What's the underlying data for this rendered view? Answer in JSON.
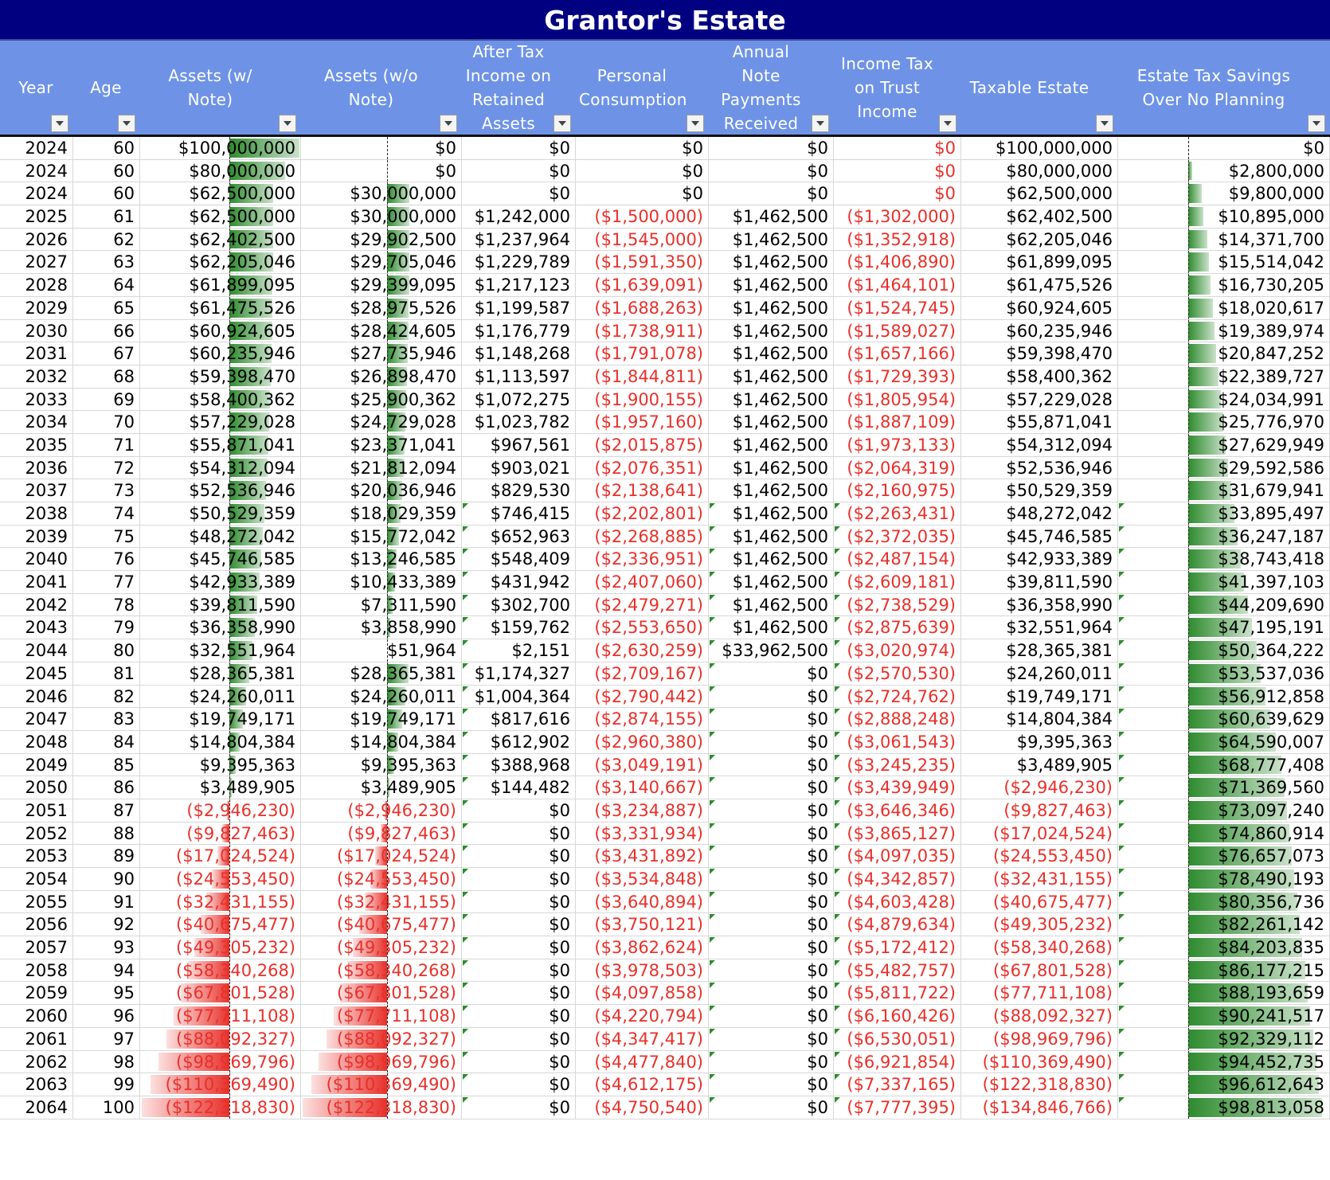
{
  "title": "Grantor's Estate",
  "colors": {
    "title_bg": "#000080",
    "header_bg": "#6e93e6",
    "negative_text": "#e8302a",
    "bar_positive": "#2e8b2e",
    "bar_negative": "#e8302a"
  },
  "columns": [
    {
      "key": "year",
      "label": "Year"
    },
    {
      "key": "age",
      "label": "Age"
    },
    {
      "key": "assets_w_note",
      "label": "Assets (w/ Note)"
    },
    {
      "key": "assets_wo_note",
      "label": "Assets (w/o Note)"
    },
    {
      "key": "after_tax_income",
      "label": "After Tax Income on Retained Assets"
    },
    {
      "key": "personal_consumption",
      "label": "Personal Consumption"
    },
    {
      "key": "annual_note_payments",
      "label": "Annual Note Payments Received"
    },
    {
      "key": "income_tax_trust",
      "label": "Income Tax on Trust Income"
    },
    {
      "key": "taxable_estate",
      "label": "Taxable Estate"
    },
    {
      "key": "estate_tax_savings",
      "label": "Estate Tax Savings Over No Planning"
    }
  ],
  "rows": [
    [
      "2024",
      "60",
      "$100,000,000",
      "$0",
      "$0",
      "$0",
      "$0",
      "$0",
      "$100,000,000",
      "$0"
    ],
    [
      "2024",
      "60",
      "$80,000,000",
      "$0",
      "$0",
      "$0",
      "$0",
      "$0",
      "$80,000,000",
      "$2,800,000"
    ],
    [
      "2024",
      "60",
      "$62,500,000",
      "$30,000,000",
      "$0",
      "$0",
      "$0",
      "$0",
      "$62,500,000",
      "$9,800,000"
    ],
    [
      "2025",
      "61",
      "$62,500,000",
      "$30,000,000",
      "$1,242,000",
      "($1,500,000)",
      "$1,462,500",
      "($1,302,000)",
      "$62,402,500",
      "$10,895,000"
    ],
    [
      "2026",
      "62",
      "$62,402,500",
      "$29,902,500",
      "$1,237,964",
      "($1,545,000)",
      "$1,462,500",
      "($1,352,918)",
      "$62,205,046",
      "$14,371,700"
    ],
    [
      "2027",
      "63",
      "$62,205,046",
      "$29,705,046",
      "$1,229,789",
      "($1,591,350)",
      "$1,462,500",
      "($1,406,890)",
      "$61,899,095",
      "$15,514,042"
    ],
    [
      "2028",
      "64",
      "$61,899,095",
      "$29,399,095",
      "$1,217,123",
      "($1,639,091)",
      "$1,462,500",
      "($1,464,101)",
      "$61,475,526",
      "$16,730,205"
    ],
    [
      "2029",
      "65",
      "$61,475,526",
      "$28,975,526",
      "$1,199,587",
      "($1,688,263)",
      "$1,462,500",
      "($1,524,745)",
      "$60,924,605",
      "$18,020,617"
    ],
    [
      "2030",
      "66",
      "$60,924,605",
      "$28,424,605",
      "$1,176,779",
      "($1,738,911)",
      "$1,462,500",
      "($1,589,027)",
      "$60,235,946",
      "$19,389,974"
    ],
    [
      "2031",
      "67",
      "$60,235,946",
      "$27,735,946",
      "$1,148,268",
      "($1,791,078)",
      "$1,462,500",
      "($1,657,166)",
      "$59,398,470",
      "$20,847,252"
    ],
    [
      "2032",
      "68",
      "$59,398,470",
      "$26,898,470",
      "$1,113,597",
      "($1,844,811)",
      "$1,462,500",
      "($1,729,393)",
      "$58,400,362",
      "$22,389,727"
    ],
    [
      "2033",
      "69",
      "$58,400,362",
      "$25,900,362",
      "$1,072,275",
      "($1,900,155)",
      "$1,462,500",
      "($1,805,954)",
      "$57,229,028",
      "$24,034,991"
    ],
    [
      "2034",
      "70",
      "$57,229,028",
      "$24,729,028",
      "$1,023,782",
      "($1,957,160)",
      "$1,462,500",
      "($1,887,109)",
      "$55,871,041",
      "$25,776,970"
    ],
    [
      "2035",
      "71",
      "$55,871,041",
      "$23,371,041",
      "$967,561",
      "($2,015,875)",
      "$1,462,500",
      "($1,973,133)",
      "$54,312,094",
      "$27,629,949"
    ],
    [
      "2036",
      "72",
      "$54,312,094",
      "$21,812,094",
      "$903,021",
      "($2,076,351)",
      "$1,462,500",
      "($2,064,319)",
      "$52,536,946",
      "$29,592,586"
    ],
    [
      "2037",
      "73",
      "$52,536,946",
      "$20,036,946",
      "$829,530",
      "($2,138,641)",
      "$1,462,500",
      "($2,160,975)",
      "$50,529,359",
      "$31,679,941"
    ],
    [
      "2038",
      "74",
      "$50,529,359",
      "$18,029,359",
      "$746,415",
      "($2,202,801)",
      "$1,462,500",
      "($2,263,431)",
      "$48,272,042",
      "$33,895,497"
    ],
    [
      "2039",
      "75",
      "$48,272,042",
      "$15,772,042",
      "$652,963",
      "($2,268,885)",
      "$1,462,500",
      "($2,372,035)",
      "$45,746,585",
      "$36,247,187"
    ],
    [
      "2040",
      "76",
      "$45,746,585",
      "$13,246,585",
      "$548,409",
      "($2,336,951)",
      "$1,462,500",
      "($2,487,154)",
      "$42,933,389",
      "$38,743,418"
    ],
    [
      "2041",
      "77",
      "$42,933,389",
      "$10,433,389",
      "$431,942",
      "($2,407,060)",
      "$1,462,500",
      "($2,609,181)",
      "$39,811,590",
      "$41,397,103"
    ],
    [
      "2042",
      "78",
      "$39,811,590",
      "$7,311,590",
      "$302,700",
      "($2,479,271)",
      "$1,462,500",
      "($2,738,529)",
      "$36,358,990",
      "$44,209,690"
    ],
    [
      "2043",
      "79",
      "$36,358,990",
      "$3,858,990",
      "$159,762",
      "($2,553,650)",
      "$1,462,500",
      "($2,875,639)",
      "$32,551,964",
      "$47,195,191"
    ],
    [
      "2044",
      "80",
      "$32,551,964",
      "$51,964",
      "$2,151",
      "($2,630,259)",
      "$33,962,500",
      "($3,020,974)",
      "$28,365,381",
      "$50,364,222"
    ],
    [
      "2045",
      "81",
      "$28,365,381",
      "$28,365,381",
      "$1,174,327",
      "($2,709,167)",
      "$0",
      "($2,570,530)",
      "$24,260,011",
      "$53,537,036"
    ],
    [
      "2046",
      "82",
      "$24,260,011",
      "$24,260,011",
      "$1,004,364",
      "($2,790,442)",
      "$0",
      "($2,724,762)",
      "$19,749,171",
      "$56,912,858"
    ],
    [
      "2047",
      "83",
      "$19,749,171",
      "$19,749,171",
      "$817,616",
      "($2,874,155)",
      "$0",
      "($2,888,248)",
      "$14,804,384",
      "$60,639,629"
    ],
    [
      "2048",
      "84",
      "$14,804,384",
      "$14,804,384",
      "$612,902",
      "($2,960,380)",
      "$0",
      "($3,061,543)",
      "$9,395,363",
      "$64,590,007"
    ],
    [
      "2049",
      "85",
      "$9,395,363",
      "$9,395,363",
      "$388,968",
      "($3,049,191)",
      "$0",
      "($3,245,235)",
      "$3,489,905",
      "$68,777,408"
    ],
    [
      "2050",
      "86",
      "$3,489,905",
      "$3,489,905",
      "$144,482",
      "($3,140,667)",
      "$0",
      "($3,439,949)",
      "($2,946,230)",
      "$71,369,560"
    ],
    [
      "2051",
      "87",
      "($2,946,230)",
      "($2,946,230)",
      "$0",
      "($3,234,887)",
      "$0",
      "($3,646,346)",
      "($9,827,463)",
      "$73,097,240"
    ],
    [
      "2052",
      "88",
      "($9,827,463)",
      "($9,827,463)",
      "$0",
      "($3,331,934)",
      "$0",
      "($3,865,127)",
      "($17,024,524)",
      "$74,860,914"
    ],
    [
      "2053",
      "89",
      "($17,024,524)",
      "($17,024,524)",
      "$0",
      "($3,431,892)",
      "$0",
      "($4,097,035)",
      "($24,553,450)",
      "$76,657,073"
    ],
    [
      "2054",
      "90",
      "($24,553,450)",
      "($24,553,450)",
      "$0",
      "($3,534,848)",
      "$0",
      "($4,342,857)",
      "($32,431,155)",
      "$78,490,193"
    ],
    [
      "2055",
      "91",
      "($32,431,155)",
      "($32,431,155)",
      "$0",
      "($3,640,894)",
      "$0",
      "($4,603,428)",
      "($40,675,477)",
      "$80,356,736"
    ],
    [
      "2056",
      "92",
      "($40,675,477)",
      "($40,675,477)",
      "$0",
      "($3,750,121)",
      "$0",
      "($4,879,634)",
      "($49,305,232)",
      "$82,261,142"
    ],
    [
      "2057",
      "93",
      "($49,305,232)",
      "($49,305,232)",
      "$0",
      "($3,862,624)",
      "$0",
      "($5,172,412)",
      "($58,340,268)",
      "$84,203,835"
    ],
    [
      "2058",
      "94",
      "($58,340,268)",
      "($58,340,268)",
      "$0",
      "($3,978,503)",
      "$0",
      "($5,482,757)",
      "($67,801,528)",
      "$86,177,215"
    ],
    [
      "2059",
      "95",
      "($67,801,528)",
      "($67,801,528)",
      "$0",
      "($4,097,858)",
      "$0",
      "($5,811,722)",
      "($77,711,108)",
      "$88,193,659"
    ],
    [
      "2060",
      "96",
      "($77,711,108)",
      "($77,711,108)",
      "$0",
      "($4,220,794)",
      "$0",
      "($6,160,426)",
      "($88,092,327)",
      "$90,241,517"
    ],
    [
      "2061",
      "97",
      "($88,092,327)",
      "($88,092,327)",
      "$0",
      "($4,347,417)",
      "$0",
      "($6,530,051)",
      "($98,969,796)",
      "$92,329,112"
    ],
    [
      "2062",
      "98",
      "($98,969,796)",
      "($98,969,796)",
      "$0",
      "($4,477,840)",
      "$0",
      "($6,921,854)",
      "($110,369,490)",
      "$94,452,735"
    ],
    [
      "2063",
      "99",
      "($110,369,490)",
      "($110,369,490)",
      "$0",
      "($4,612,175)",
      "$0",
      "($7,337,165)",
      "($122,318,830)",
      "$96,612,643"
    ],
    [
      "2064",
      "100",
      "($122,318,830)",
      "($122,318,830)",
      "$0",
      "($4,750,540)",
      "$0",
      "($7,777,395)",
      "($134,846,766)",
      "$98,813,058"
    ]
  ]
}
